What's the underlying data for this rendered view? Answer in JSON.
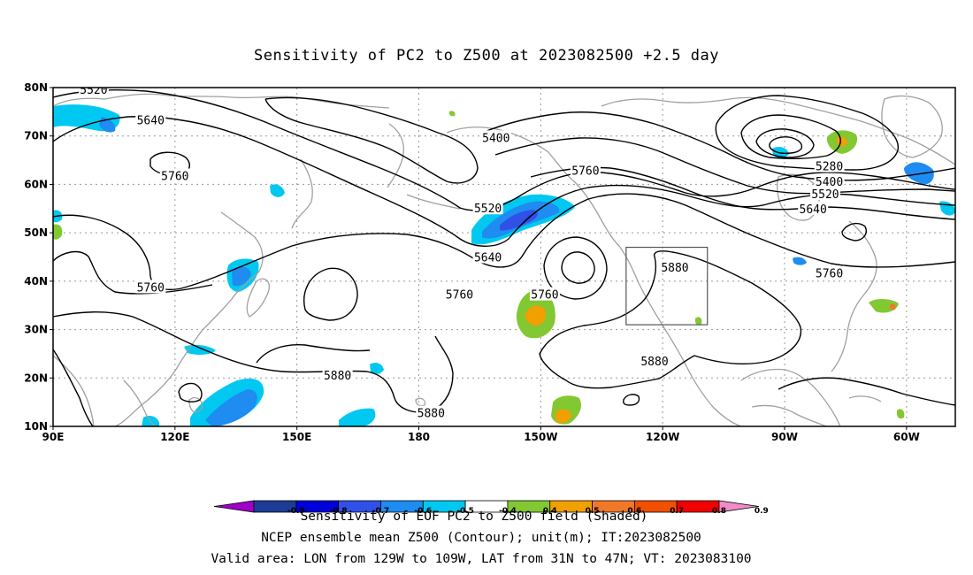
{
  "title": "Sensitivity of PC2 to Z500 at 2023082500 +2.5 day",
  "axes": {
    "lat_ticks": [
      "80N",
      "70N",
      "60N",
      "50N",
      "40N",
      "30N",
      "20N",
      "10N"
    ],
    "lon_ticks": [
      "90E",
      "120E",
      "150E",
      "180",
      "150W",
      "120W",
      "90W",
      "60W"
    ]
  },
  "map": {
    "lon_range_deg_east": [
      90,
      312
    ],
    "lat_range": [
      10,
      80
    ],
    "grid": true,
    "coastline_color": "#a0a0a0",
    "contour_color": "#000000",
    "valid_box": {
      "lon_west": 129,
      "lon_east": 109,
      "lat_south": 31,
      "lat_north": 47
    }
  },
  "contour_labels": [
    {
      "text": "5520",
      "lon": 100,
      "lat": 79.6
    },
    {
      "text": "5640",
      "lon": 114,
      "lat": 73.3
    },
    {
      "text": "5760",
      "lon": 120,
      "lat": 61.8
    },
    {
      "text": "5400",
      "lon": 199,
      "lat": 69.7
    },
    {
      "text": "5520",
      "lon": 197,
      "lat": 55.1
    },
    {
      "text": "5640",
      "lon": 197,
      "lat": 45.0
    },
    {
      "text": "5760",
      "lon": 221,
      "lat": 62.9
    },
    {
      "text": "5760",
      "lon": 211,
      "lat": 37.3
    },
    {
      "text": "5760",
      "lon": 190,
      "lat": 37.3
    },
    {
      "text": "5760",
      "lon": 114,
      "lat": 38.8
    },
    {
      "text": "5880",
      "lon": 243,
      "lat": 42.9
    },
    {
      "text": "5880",
      "lon": 238,
      "lat": 23.5
    },
    {
      "text": "5880",
      "lon": 160,
      "lat": 20.6
    },
    {
      "text": "5880",
      "lon": 183,
      "lat": 12.8
    },
    {
      "text": "5280",
      "lon": 281,
      "lat": 63.8
    },
    {
      "text": "5400",
      "lon": 281,
      "lat": 60.6
    },
    {
      "text": "5520",
      "lon": 280,
      "lat": 58.1
    },
    {
      "text": "5640",
      "lon": 277,
      "lat": 55.0
    },
    {
      "text": "5760",
      "lon": 281,
      "lat": 41.7
    }
  ],
  "colorbar": {
    "colors": [
      "#a000c8",
      "#1e3c96",
      "#0000d8",
      "#3050e8",
      "#1e8cf0",
      "#00c8f0",
      "#ffffff",
      "#82c832",
      "#f0a000",
      "#f07828",
      "#f05000",
      "#f00000",
      "#f08cc8"
    ],
    "labels": [
      "-0.9",
      "-0.8",
      "-0.7",
      "-0.6",
      "-0.5",
      "-0.4",
      "0.4",
      "0.5",
      "0.6",
      "0.7",
      "0.8",
      "0.9"
    ]
  },
  "footer": {
    "line1": "Sensitivity of EOF PC2 to Z500 field (Shaded)",
    "line2": "NCEP ensemble mean Z500 (Contour); unit(m); IT:2023082500",
    "line3": "Valid area: LON from 129W to 109W, LAT from 31N to 47N; VT: 2023083100"
  }
}
